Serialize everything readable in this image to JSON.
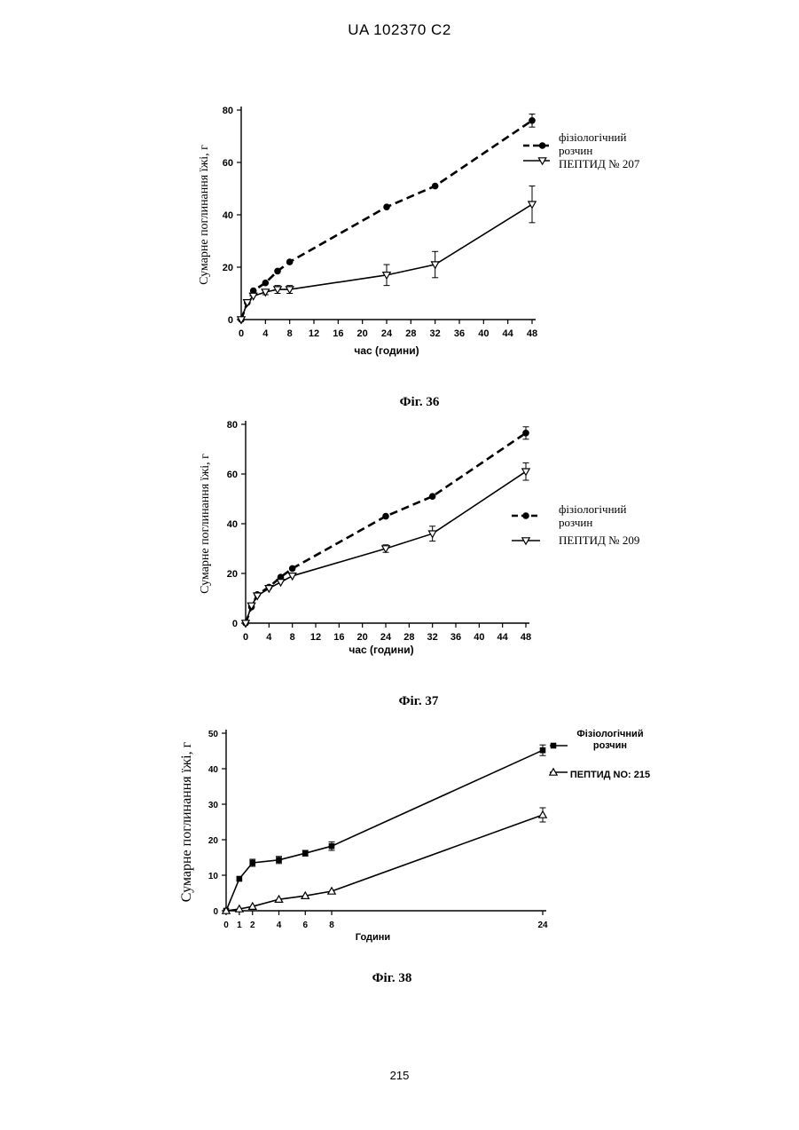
{
  "header": {
    "text": "UA   102370   C2"
  },
  "page_number": "215",
  "chart_data": [
    {
      "type": "line",
      "caption": "Фіг. 36",
      "xlabel": "час (години)",
      "ylabel": "Сумарне поглинання їжі, г",
      "xlim": [
        0,
        48
      ],
      "ylim": [
        0,
        80
      ],
      "xticks": [
        0,
        4,
        8,
        12,
        16,
        20,
        24,
        28,
        32,
        36,
        40,
        44,
        48
      ],
      "yticks": [
        0,
        20,
        40,
        60,
        80
      ],
      "legend_placement": "top-right",
      "series": [
        {
          "name": "фізіологічний розчин",
          "line": "dashed",
          "marker": "circle",
          "x": [
            0,
            1,
            2,
            4,
            6,
            8,
            24,
            32,
            48
          ],
          "y": [
            0,
            6.5,
            11,
            14,
            18.5,
            22,
            43,
            51,
            76
          ],
          "err": [
            0,
            0,
            0,
            0,
            0,
            0,
            0,
            0,
            2.5
          ]
        },
        {
          "name": "ПЕПТИД № 207",
          "line": "solid",
          "marker": "triangle-down",
          "x": [
            0,
            1,
            2,
            4,
            6,
            8,
            24,
            32,
            48
          ],
          "y": [
            0,
            6.5,
            9,
            10.5,
            11.5,
            11.5,
            17,
            21,
            44
          ],
          "err": [
            0,
            0,
            0,
            1,
            1.5,
            1.5,
            4,
            5,
            7
          ]
        }
      ]
    },
    {
      "type": "line",
      "caption": "Фіг. 37",
      "xlabel": "час (години)",
      "ylabel": "Сумарне поглинання їжі, г",
      "xlim": [
        0,
        48
      ],
      "ylim": [
        0,
        80
      ],
      "xticks": [
        0,
        4,
        8,
        12,
        16,
        20,
        24,
        28,
        32,
        36,
        40,
        44,
        48
      ],
      "yticks": [
        0,
        20,
        40,
        60,
        80
      ],
      "legend_placement": "right",
      "series": [
        {
          "name": "фізіологічний розчин",
          "line": "dashed",
          "marker": "circle",
          "x": [
            0,
            1,
            2,
            4,
            6,
            8,
            24,
            32,
            48
          ],
          "y": [
            0,
            6.5,
            11.5,
            14.5,
            18.5,
            22,
            43,
            51,
            76.5
          ],
          "err": [
            0,
            0,
            0,
            0,
            0,
            0,
            0,
            0,
            2.5
          ]
        },
        {
          "name": "ПЕПТИД № 209",
          "line": "solid",
          "marker": "triangle-down",
          "x": [
            0,
            1,
            2,
            4,
            6,
            8,
            24,
            32,
            48
          ],
          "y": [
            0,
            7,
            11,
            14,
            16.5,
            19,
            30,
            36,
            61
          ],
          "err": [
            0,
            0,
            0,
            0,
            0,
            0,
            1.5,
            3,
            3.5
          ]
        }
      ]
    },
    {
      "type": "line",
      "caption": "Фіг. 38",
      "xlabel": "Години",
      "ylabel": "Сумарне поглинання їжі, г",
      "xlim": [
        0,
        24
      ],
      "ylim": [
        0,
        50
      ],
      "xticks": [
        0,
        1,
        2,
        4,
        6,
        8,
        24
      ],
      "yticks": [
        0,
        10,
        20,
        30,
        40,
        50
      ],
      "legend_placement": "right",
      "series": [
        {
          "name": "Фізіологічний розчин",
          "line": "solid",
          "marker": "square",
          "x": [
            0,
            1,
            2,
            4,
            6,
            8,
            24
          ],
          "y": [
            0,
            9,
            13.5,
            14.3,
            16.2,
            18.2,
            45.2
          ],
          "err": [
            0,
            0,
            1,
            1,
            0.8,
            1.2,
            1.5
          ]
        },
        {
          "name": "ПЕПТИД NO: 215",
          "line": "solid",
          "marker": "triangle-up",
          "x": [
            0,
            1,
            2,
            4,
            6,
            8,
            24
          ],
          "y": [
            0,
            0.5,
            1.2,
            3.2,
            4.2,
            5.5,
            27
          ],
          "err": [
            0,
            0,
            0,
            0,
            0,
            0,
            2
          ]
        }
      ]
    }
  ]
}
